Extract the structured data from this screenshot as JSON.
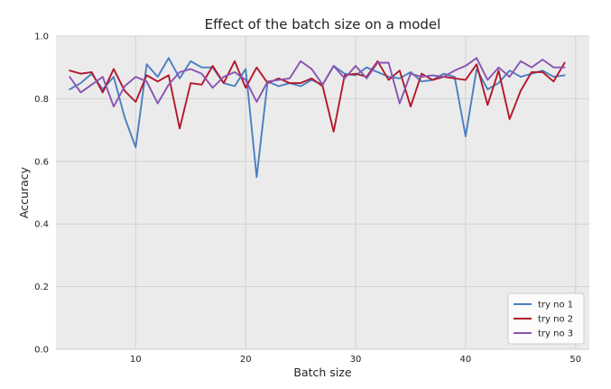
{
  "chart_data": {
    "type": "line",
    "title": "Effect of the batch size on a model",
    "xlabel": "Batch size",
    "ylabel": "Accuracy",
    "xlim": [
      2.75,
      51.25
    ],
    "ylim": [
      0.0,
      1.0
    ],
    "xticks": [
      "10",
      "20",
      "30",
      "40",
      "50"
    ],
    "yticks": [
      "0.0",
      "0.2",
      "0.4",
      "0.6",
      "0.8",
      "1.0"
    ],
    "grid": true,
    "legend_position": "lower-right",
    "x": [
      4,
      5,
      6,
      7,
      8,
      9,
      10,
      11,
      12,
      13,
      14,
      15,
      16,
      17,
      18,
      19,
      20,
      21,
      22,
      23,
      24,
      25,
      26,
      27,
      28,
      29,
      30,
      31,
      32,
      33,
      34,
      35,
      36,
      37,
      38,
      39,
      40,
      41,
      42,
      43,
      44,
      45,
      46,
      47,
      48,
      49
    ],
    "series": [
      {
        "name": "try no 1",
        "color": "#4a7fc1",
        "values": [
          0.83,
          0.85,
          0.88,
          0.83,
          0.87,
          0.74,
          0.645,
          0.91,
          0.87,
          0.93,
          0.865,
          0.92,
          0.9,
          0.9,
          0.85,
          0.84,
          0.895,
          0.55,
          0.855,
          0.84,
          0.85,
          0.84,
          0.86,
          0.845,
          0.905,
          0.88,
          0.875,
          0.9,
          0.885,
          0.87,
          0.865,
          0.885,
          0.855,
          0.86,
          0.88,
          0.87,
          0.68,
          0.895,
          0.83,
          0.85,
          0.89,
          0.87,
          0.88,
          0.89,
          0.87,
          0.875
        ]
      },
      {
        "name": "try no 2",
        "color": "#b2182b",
        "values": [
          0.89,
          0.88,
          0.885,
          0.82,
          0.895,
          0.825,
          0.79,
          0.875,
          0.855,
          0.875,
          0.705,
          0.85,
          0.845,
          0.905,
          0.85,
          0.92,
          0.835,
          0.9,
          0.85,
          0.865,
          0.85,
          0.85,
          0.865,
          0.84,
          0.695,
          0.875,
          0.88,
          0.87,
          0.92,
          0.86,
          0.89,
          0.775,
          0.88,
          0.86,
          0.87,
          0.865,
          0.86,
          0.91,
          0.78,
          0.89,
          0.735,
          0.825,
          0.885,
          0.885,
          0.855,
          0.915
        ]
      },
      {
        "name": "try no 3",
        "color": "#8a54b2",
        "values": [
          0.87,
          0.82,
          0.845,
          0.87,
          0.775,
          0.84,
          0.87,
          0.855,
          0.785,
          0.845,
          0.885,
          0.895,
          0.88,
          0.835,
          0.87,
          0.885,
          0.86,
          0.79,
          0.855,
          0.86,
          0.865,
          0.92,
          0.895,
          0.845,
          0.905,
          0.865,
          0.905,
          0.865,
          0.915,
          0.915,
          0.785,
          0.88,
          0.87,
          0.875,
          0.87,
          0.89,
          0.905,
          0.93,
          0.86,
          0.9,
          0.87,
          0.92,
          0.9,
          0.925,
          0.9,
          0.9
        ]
      }
    ]
  }
}
